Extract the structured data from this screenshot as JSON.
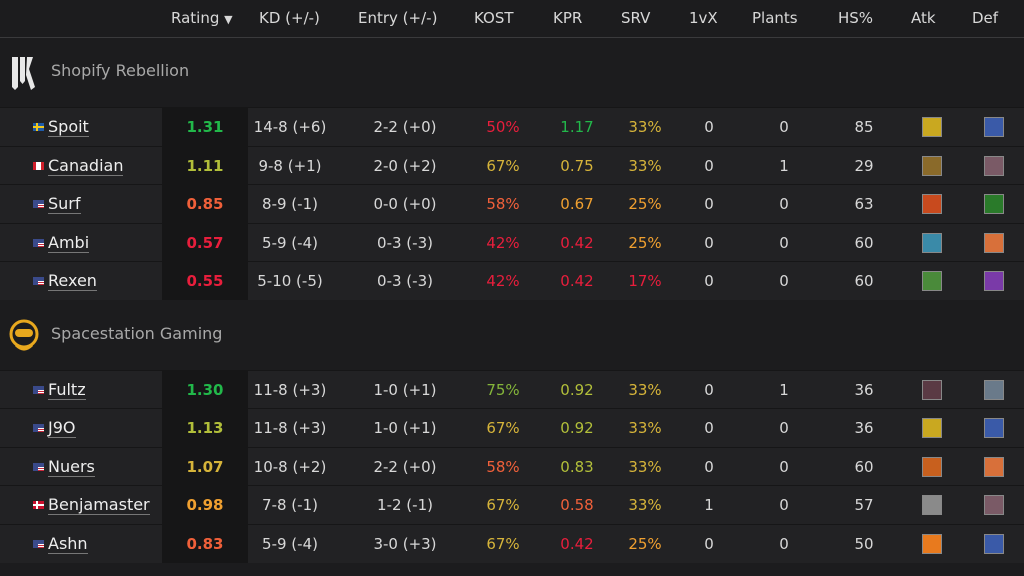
{
  "columns": [
    "Rating",
    "KD (+/-)",
    "Entry (+/-)",
    "KOST",
    "KPR",
    "SRV",
    "1vX",
    "Plants",
    "HS%",
    "Atk",
    "Def"
  ],
  "sort_icon": "caret-down-icon",
  "colors": {
    "g": "#22b84a",
    "lg": "#84b53a",
    "yg": "#b2bf3a",
    "y": "#d6b43a",
    "o": "#f0a030",
    "ro": "#f0603a",
    "r": "#e81e3c"
  },
  "teams": [
    {
      "name": "Shopify Rebellion",
      "logo": "shopify-rebellion-logo",
      "players": [
        {
          "flag": "se",
          "name": "Spoit",
          "rating": "1.31",
          "rc": "g",
          "kd": "14-8 (+6)",
          "entry": "2-2 (+0)",
          "kost": "50%",
          "kc": "r",
          "kpr": "1.17",
          "pc": "g",
          "srv": "33%",
          "sc": "y",
          "onevx": "0",
          "plants": "0",
          "hs": "85",
          "atk": "#c9a820",
          "def": "#3a5aa8"
        },
        {
          "flag": "ca",
          "name": "Canadian",
          "rating": "1.11",
          "rc": "yg",
          "kd": "9-8 (+1)",
          "entry": "2-0 (+2)",
          "kost": "67%",
          "kc": "y",
          "kpr": "0.75",
          "pc": "y",
          "srv": "33%",
          "sc": "y",
          "onevx": "0",
          "plants": "1",
          "hs": "29",
          "atk": "#8a6a2a",
          "def": "#7a5a66"
        },
        {
          "flag": "us",
          "name": "Surf",
          "rating": "0.85",
          "rc": "ro",
          "kd": "8-9 (-1)",
          "entry": "0-0 (+0)",
          "kost": "58%",
          "kc": "ro",
          "kpr": "0.67",
          "pc": "o",
          "srv": "25%",
          "sc": "o",
          "onevx": "0",
          "plants": "0",
          "hs": "63",
          "atk": "#c84a1e",
          "def": "#2a7a2a"
        },
        {
          "flag": "us",
          "name": "Ambi",
          "rating": "0.57",
          "rc": "r",
          "kd": "5-9 (-4)",
          "entry": "0-3 (-3)",
          "kost": "42%",
          "kc": "r",
          "kpr": "0.42",
          "pc": "r",
          "srv": "25%",
          "sc": "o",
          "onevx": "0",
          "plants": "0",
          "hs": "60",
          "atk": "#3a8aa8",
          "def": "#d8703a"
        },
        {
          "flag": "us",
          "name": "Rexen",
          "rating": "0.55",
          "rc": "r",
          "kd": "5-10 (-5)",
          "entry": "0-3 (-3)",
          "kost": "42%",
          "kc": "r",
          "kpr": "0.42",
          "pc": "r",
          "srv": "17%",
          "sc": "r",
          "onevx": "0",
          "plants": "0",
          "hs": "60",
          "atk": "#4a8a3a",
          "def": "#7a3aa8"
        }
      ]
    },
    {
      "name": "Spacestation Gaming",
      "logo": "spacestation-gaming-logo",
      "players": [
        {
          "flag": "us",
          "name": "Fultz",
          "rating": "1.30",
          "rc": "g",
          "kd": "11-8 (+3)",
          "entry": "1-0 (+1)",
          "kost": "75%",
          "kc": "lg",
          "kpr": "0.92",
          "pc": "yg",
          "srv": "33%",
          "sc": "y",
          "onevx": "0",
          "plants": "1",
          "hs": "36",
          "atk": "#5a3a44",
          "def": "#6a7a8a"
        },
        {
          "flag": "us",
          "name": "J9O",
          "rating": "1.13",
          "rc": "yg",
          "kd": "11-8 (+3)",
          "entry": "1-0 (+1)",
          "kost": "67%",
          "kc": "y",
          "kpr": "0.92",
          "pc": "yg",
          "srv": "33%",
          "sc": "y",
          "onevx": "0",
          "plants": "0",
          "hs": "36",
          "atk": "#c9a820",
          "def": "#3a5aa8"
        },
        {
          "flag": "us",
          "name": "Nuers",
          "rating": "1.07",
          "rc": "y",
          "kd": "10-8 (+2)",
          "entry": "2-2 (+0)",
          "kost": "58%",
          "kc": "ro",
          "kpr": "0.83",
          "pc": "yg",
          "srv": "33%",
          "sc": "y",
          "onevx": "0",
          "plants": "0",
          "hs": "60",
          "atk": "#c8601e",
          "def": "#d8703a"
        },
        {
          "flag": "dk",
          "name": "Benjamaster",
          "rating": "0.98",
          "rc": "o",
          "kd": "7-8 (-1)",
          "entry": "1-2 (-1)",
          "kost": "67%",
          "kc": "y",
          "kpr": "0.58",
          "pc": "ro",
          "srv": "33%",
          "sc": "y",
          "onevx": "1",
          "plants": "0",
          "hs": "57",
          "atk": "#8a8a8a",
          "def": "#7a5a66"
        },
        {
          "flag": "us",
          "name": "Ashn",
          "rating": "0.83",
          "rc": "ro",
          "kd": "5-9 (-4)",
          "entry": "3-0 (+3)",
          "kost": "67%",
          "kc": "y",
          "kpr": "0.42",
          "pc": "r",
          "srv": "25%",
          "sc": "o",
          "onevx": "0",
          "plants": "0",
          "hs": "50",
          "atk": "#e87a1e",
          "def": "#3a5aa8"
        }
      ]
    }
  ]
}
